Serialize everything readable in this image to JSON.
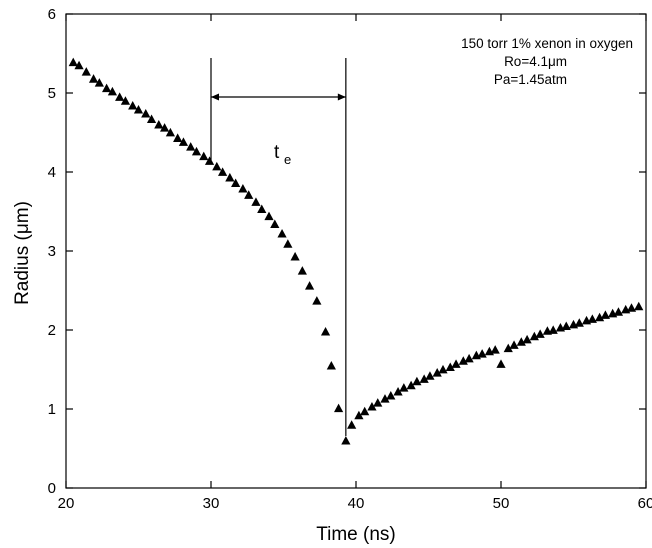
{
  "chart_data": {
    "type": "scatter",
    "xlabel": "Time (ns)",
    "ylabel": "Radius (μm)",
    "xlim": [
      20,
      60
    ],
    "ylim": [
      0,
      6
    ],
    "xticks": [
      "20",
      "30",
      "40",
      "50",
      "60"
    ],
    "yticks": [
      "0",
      "1",
      "2",
      "3",
      "4",
      "5",
      "6"
    ],
    "grid": false,
    "marker": "triangle",
    "color": "#000000",
    "annotation_lines": [
      "150 torr 1% xenon in oxygen",
      "Ro=4.1μm",
      "Pa=1.45atm"
    ],
    "te": {
      "label": "t",
      "subscript": "e",
      "start": 30.0,
      "end": 39.3
    },
    "points": [
      [
        20.5,
        5.39
      ],
      [
        20.9,
        5.35
      ],
      [
        21.4,
        5.27
      ],
      [
        21.9,
        5.18
      ],
      [
        22.3,
        5.13
      ],
      [
        22.8,
        5.06
      ],
      [
        23.2,
        5.02
      ],
      [
        23.7,
        4.95
      ],
      [
        24.1,
        4.9
      ],
      [
        24.6,
        4.84
      ],
      [
        25.0,
        4.79
      ],
      [
        25.5,
        4.74
      ],
      [
        25.9,
        4.67
      ],
      [
        26.4,
        4.6
      ],
      [
        26.8,
        4.56
      ],
      [
        27.2,
        4.5
      ],
      [
        27.7,
        4.43
      ],
      [
        28.1,
        4.38
      ],
      [
        28.6,
        4.32
      ],
      [
        29.0,
        4.26
      ],
      [
        29.5,
        4.2
      ],
      [
        29.9,
        4.14
      ],
      [
        30.4,
        4.07
      ],
      [
        30.8,
        4.0
      ],
      [
        31.3,
        3.93
      ],
      [
        31.7,
        3.86
      ],
      [
        32.2,
        3.79
      ],
      [
        32.6,
        3.71
      ],
      [
        33.1,
        3.62
      ],
      [
        33.5,
        3.53
      ],
      [
        34.0,
        3.44
      ],
      [
        34.4,
        3.34
      ],
      [
        34.9,
        3.22
      ],
      [
        35.3,
        3.09
      ],
      [
        35.8,
        2.93
      ],
      [
        36.3,
        2.75
      ],
      [
        36.8,
        2.56
      ],
      [
        37.3,
        2.37
      ],
      [
        37.9,
        1.98
      ],
      [
        38.3,
        1.55
      ],
      [
        38.8,
        1.01
      ],
      [
        39.3,
        0.6
      ],
      [
        39.7,
        0.8
      ],
      [
        40.2,
        0.92
      ],
      [
        40.6,
        0.97
      ],
      [
        41.1,
        1.03
      ],
      [
        41.5,
        1.08
      ],
      [
        42.0,
        1.13
      ],
      [
        42.4,
        1.17
      ],
      [
        42.9,
        1.22
      ],
      [
        43.3,
        1.27
      ],
      [
        43.8,
        1.3
      ],
      [
        44.2,
        1.35
      ],
      [
        44.7,
        1.38
      ],
      [
        45.1,
        1.42
      ],
      [
        45.6,
        1.46
      ],
      [
        46.0,
        1.5
      ],
      [
        46.5,
        1.53
      ],
      [
        46.9,
        1.57
      ],
      [
        47.4,
        1.61
      ],
      [
        47.8,
        1.64
      ],
      [
        48.3,
        1.68
      ],
      [
        48.7,
        1.7
      ],
      [
        49.2,
        1.73
      ],
      [
        49.6,
        1.75
      ],
      [
        50.0,
        1.57
      ],
      [
        50.5,
        1.77
      ],
      [
        50.9,
        1.81
      ],
      [
        51.4,
        1.85
      ],
      [
        51.8,
        1.88
      ],
      [
        52.3,
        1.92
      ],
      [
        52.7,
        1.95
      ],
      [
        53.2,
        1.99
      ],
      [
        53.6,
        2.0
      ],
      [
        54.1,
        2.03
      ],
      [
        54.5,
        2.05
      ],
      [
        55.0,
        2.07
      ],
      [
        55.4,
        2.09
      ],
      [
        55.9,
        2.12
      ],
      [
        56.3,
        2.14
      ],
      [
        56.8,
        2.16
      ],
      [
        57.2,
        2.19
      ],
      [
        57.7,
        2.21
      ],
      [
        58.1,
        2.23
      ],
      [
        58.6,
        2.26
      ],
      [
        59.0,
        2.28
      ],
      [
        59.5,
        2.3
      ]
    ]
  }
}
